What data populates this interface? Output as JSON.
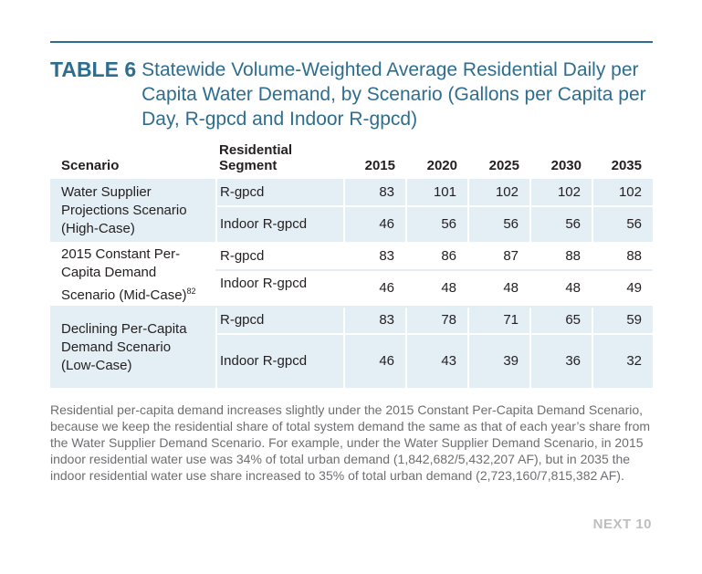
{
  "header": {
    "table_label": "TABLE 6",
    "title": "Statewide Volume-Weighted Average Residential Daily per Capita Water Demand, by Scenario (Gallons per Capita per Day, R-gpcd and Indoor R-gpcd)"
  },
  "table": {
    "columns": {
      "scenario": "Scenario",
      "segment": "Residential Segment",
      "y2015": "2015",
      "y2020": "2020",
      "y2025": "2025",
      "y2030": "2030",
      "y2035": "2035"
    },
    "groups": [
      {
        "scenario": "Water Supplier Projections Scenario (High-Case)",
        "rows": [
          {
            "segment": "R-gpcd",
            "values": [
              "83",
              "101",
              "102",
              "102",
              "102"
            ]
          },
          {
            "segment": "Indoor R-gpcd",
            "values": [
              "46",
              "56",
              "56",
              "56",
              "56"
            ]
          }
        ]
      },
      {
        "scenario": "2015 Constant Per-Capita Demand Scenario (Mid-Case)",
        "footnote": "82",
        "rows": [
          {
            "segment": "R-gpcd",
            "values": [
              "83",
              "86",
              "87",
              "88",
              "88"
            ]
          },
          {
            "segment": "Indoor R-gpcd",
            "values": [
              "46",
              "48",
              "48",
              "48",
              "49"
            ]
          }
        ]
      },
      {
        "scenario": "Declining Per-Capita Demand Scenario (Low-Case)",
        "rows": [
          {
            "segment": "R-gpcd",
            "values": [
              "83",
              "78",
              "71",
              "65",
              "59"
            ]
          },
          {
            "segment": "Indoor R-gpcd",
            "values": [
              "46",
              "43",
              "39",
              "36",
              "32"
            ]
          }
        ]
      }
    ]
  },
  "note": "Residential per-capita demand increases slightly under the 2015 Constant Per-Capita Demand Scenario, because we keep the residential share of total system demand the same as that of each year’s share from the Water Supplier Demand Scenario. For example, under the Water Supplier Demand Scenario, in 2015 indoor residential water use was 34% of total urban demand (1,842,682/5,432,207 AF), but in 2035 the indoor residential water use share increased to 35% of total urban demand (2,723,160/7,815,382 AF).",
  "footer": {
    "logo_text": "NEXT 10"
  },
  "colors": {
    "accent": "#2e6d8e",
    "shade": "#e4eef5",
    "note_text": "#6d6e71",
    "logo": "#bcbec0"
  }
}
